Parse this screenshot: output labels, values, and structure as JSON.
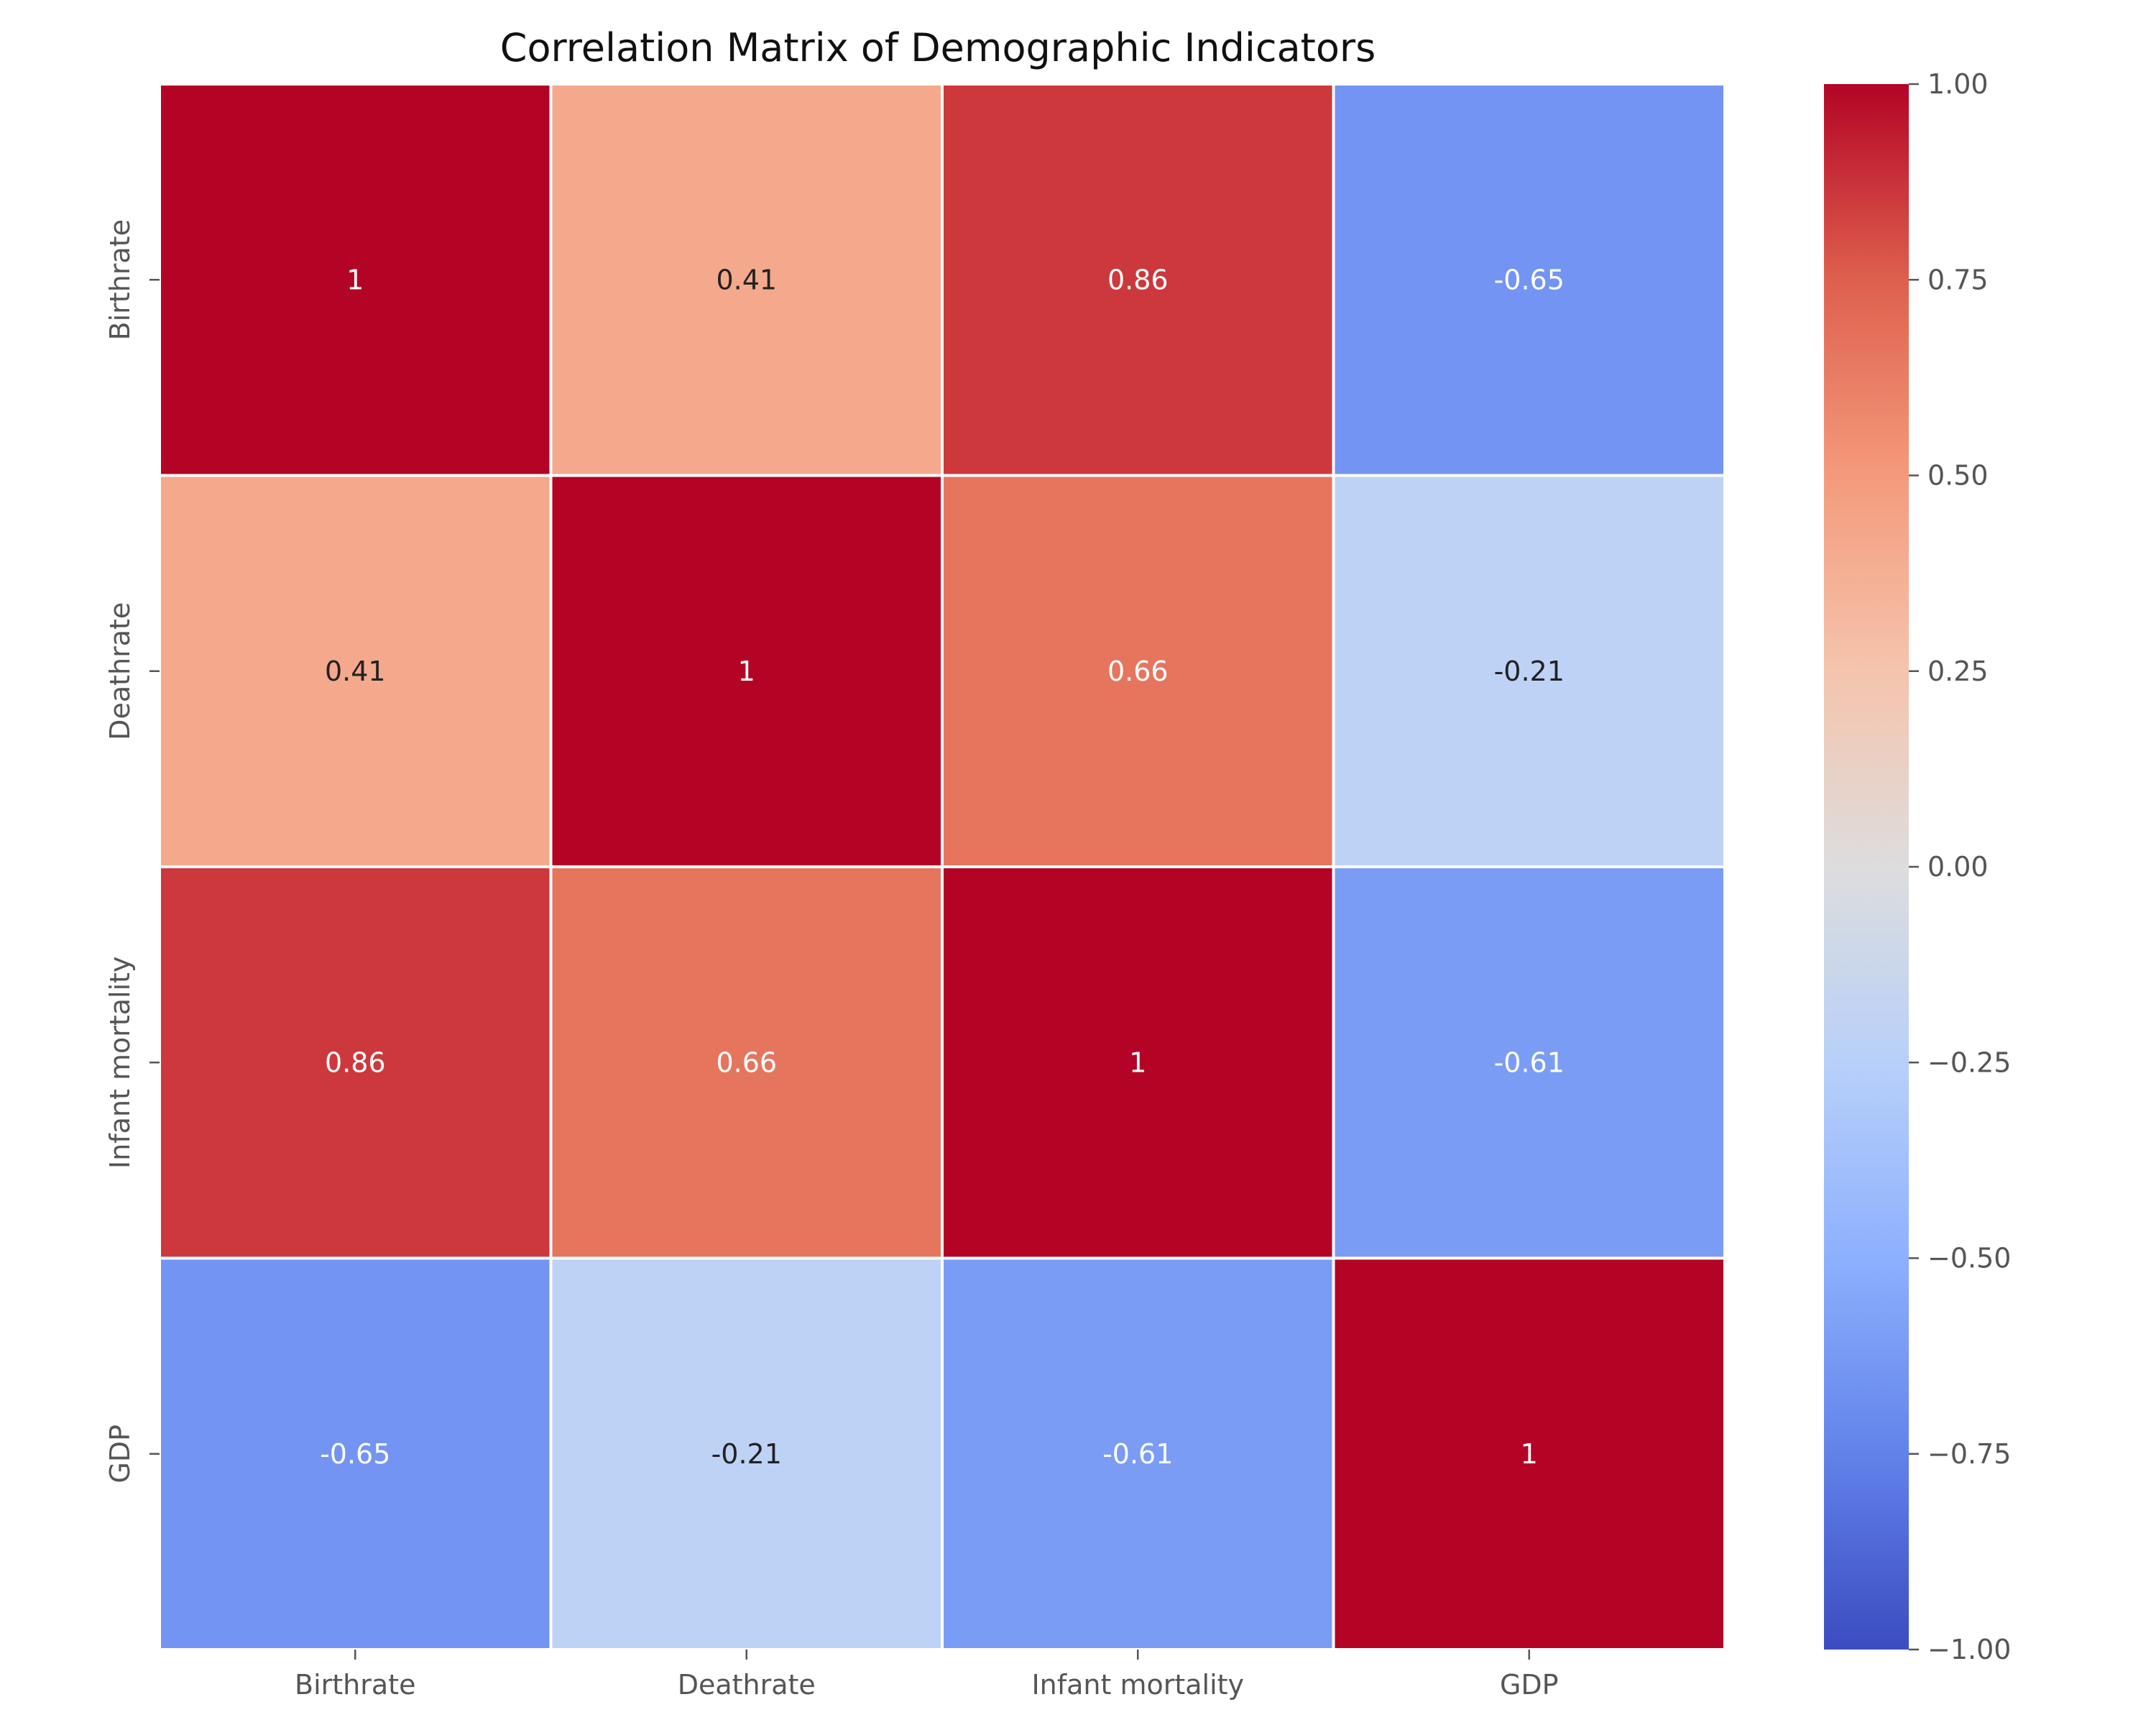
{
  "chart_data": {
    "type": "heatmap",
    "title": "Correlation Matrix of Demographic Indicators",
    "xlabel": "",
    "ylabel": "",
    "x_categories": [
      "Birthrate",
      "Deathrate",
      "Infant mortality",
      "GDP"
    ],
    "y_categories": [
      "Birthrate",
      "Deathrate",
      "Infant mortality",
      "GDP"
    ],
    "values": [
      [
        1,
        0.41,
        0.86,
        -0.65
      ],
      [
        0.41,
        1,
        0.66,
        -0.21
      ],
      [
        0.86,
        0.66,
        1,
        -0.61
      ],
      [
        -0.65,
        -0.21,
        -0.61,
        1
      ]
    ],
    "cell_labels": [
      [
        "1",
        "0.41",
        "0.86",
        "-0.65"
      ],
      [
        "0.41",
        "1",
        "0.66",
        "-0.21"
      ],
      [
        "0.86",
        "0.66",
        "1",
        "-0.61"
      ],
      [
        "-0.65",
        "-0.21",
        "-0.61",
        "1"
      ]
    ],
    "colormap": "coolwarm",
    "vmin": -1.0,
    "vmax": 1.0,
    "colorbar": {
      "ticks": [
        -1.0,
        -0.75,
        -0.5,
        -0.25,
        0.0,
        0.25,
        0.5,
        0.75,
        1.0
      ],
      "tick_labels": [
        "−1.00",
        "−0.75",
        "−0.50",
        "−0.25",
        "0.00",
        "0.25",
        "0.50",
        "0.75",
        "1.00"
      ]
    },
    "grid": false,
    "legend": "colorbar-right"
  },
  "colors": {
    "background": "#ffffff",
    "text": "#333333",
    "tick_label": "#555555",
    "cell_border": "#ffffff",
    "label_dark": "#222222",
    "label_light": "#ffffff"
  }
}
